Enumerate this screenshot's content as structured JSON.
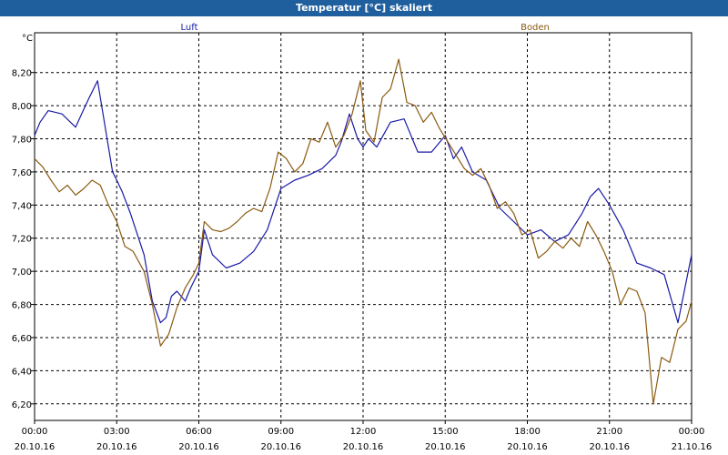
{
  "window": {
    "title": "Temperatur [°C] skaliert"
  },
  "colors": {
    "luft": "#1a1aa6",
    "boden": "#8b5a10",
    "grid": "#000000",
    "titlebar": "#1f5f9e"
  },
  "chart_data": {
    "type": "line",
    "title": "Temperatur [°C] skaliert",
    "ylabel": "°C",
    "ylim": [
      6.1,
      8.44
    ],
    "xlim": [
      0,
      24
    ],
    "grid": true,
    "legend_position": "top",
    "y_ticks": [
      {
        "value": 6.2,
        "label": "6,20"
      },
      {
        "value": 6.4,
        "label": "6,40"
      },
      {
        "value": 6.6,
        "label": "6,60"
      },
      {
        "value": 6.8,
        "label": "6,80"
      },
      {
        "value": 7.0,
        "label": "7,00"
      },
      {
        "value": 7.2,
        "label": "7,20"
      },
      {
        "value": 7.4,
        "label": "7,40"
      },
      {
        "value": 7.6,
        "label": "7,60"
      },
      {
        "value": 7.8,
        "label": "7,80"
      },
      {
        "value": 8.0,
        "label": "8,00"
      },
      {
        "value": 8.2,
        "label": "8,20"
      }
    ],
    "x_ticks": [
      {
        "value": 0,
        "time": "00:00",
        "date": "20.10.16"
      },
      {
        "value": 3,
        "time": "03:00",
        "date": "20.10.16"
      },
      {
        "value": 6,
        "time": "06:00",
        "date": "20.10.16"
      },
      {
        "value": 9,
        "time": "09:00",
        "date": "20.10.16"
      },
      {
        "value": 12,
        "time": "12:00",
        "date": "20.10.16"
      },
      {
        "value": 15,
        "time": "15:00",
        "date": "20.10.16"
      },
      {
        "value": 18,
        "time": "18:00",
        "date": "20.10.16"
      },
      {
        "value": 21,
        "time": "21:00",
        "date": "20.10.16"
      },
      {
        "value": 24,
        "time": "00:00",
        "date": "21.10.16"
      }
    ],
    "series": [
      {
        "name": "Luft",
        "color": "#1a1aa6",
        "x": [
          0,
          0.2,
          0.5,
          1,
          1.5,
          1.8,
          2,
          2.3,
          2.5,
          2.7,
          2.85,
          3,
          3.2,
          3.5,
          4,
          4.3,
          4.6,
          4.8,
          5,
          5.2,
          5.5,
          5.7,
          6,
          6.2,
          6.5,
          7,
          7.5,
          8,
          8.5,
          9,
          9.5,
          10,
          10.5,
          11,
          11.2,
          11.5,
          11.8,
          12,
          12.2,
          12.5,
          13,
          13.5,
          14,
          14.5,
          15,
          15.3,
          15.6,
          16,
          16.5,
          17,
          17.5,
          18,
          18.5,
          19,
          19.5,
          20,
          20.3,
          20.6,
          21,
          21.5,
          22,
          22.5,
          23,
          23.5,
          24
        ],
        "y": [
          7.82,
          7.9,
          7.97,
          7.95,
          7.87,
          7.98,
          8.05,
          8.15,
          7.95,
          7.75,
          7.6,
          7.55,
          7.48,
          7.35,
          7.1,
          6.82,
          6.69,
          6.72,
          6.85,
          6.88,
          6.82,
          6.9,
          7.0,
          7.25,
          7.1,
          7.02,
          7.05,
          7.12,
          7.25,
          7.5,
          7.55,
          7.58,
          7.62,
          7.7,
          7.78,
          7.95,
          7.8,
          7.75,
          7.8,
          7.75,
          7.9,
          7.92,
          7.72,
          7.72,
          7.82,
          7.68,
          7.75,
          7.6,
          7.55,
          7.38,
          7.3,
          7.22,
          7.25,
          7.18,
          7.22,
          7.35,
          7.45,
          7.5,
          7.4,
          7.25,
          7.05,
          7.02,
          6.98,
          6.69,
          7.1
        ]
      },
      {
        "name": "Boden",
        "color": "#8b5a10",
        "x": [
          0,
          0.3,
          0.6,
          0.9,
          1.2,
          1.5,
          1.8,
          2.1,
          2.4,
          2.7,
          3,
          3.3,
          3.6,
          4,
          4.3,
          4.6,
          4.9,
          5.2,
          5.5,
          5.8,
          6,
          6.2,
          6.5,
          6.8,
          7.1,
          7.4,
          7.7,
          8,
          8.3,
          8.6,
          8.9,
          9.2,
          9.5,
          9.8,
          10.1,
          10.4,
          10.7,
          11,
          11.3,
          11.6,
          11.9,
          12.1,
          12.4,
          12.7,
          13,
          13.3,
          13.6,
          13.9,
          14.2,
          14.5,
          14.8,
          15.1,
          15.4,
          15.7,
          16,
          16.3,
          16.6,
          16.9,
          17.2,
          17.5,
          17.8,
          18.1,
          18.4,
          18.7,
          19,
          19.3,
          19.6,
          19.9,
          20.2,
          20.5,
          20.8,
          21.1,
          21.4,
          21.7,
          22,
          22.3,
          22.6,
          22.9,
          23.2,
          23.5,
          23.8,
          24
        ],
        "y": [
          7.68,
          7.63,
          7.55,
          7.48,
          7.52,
          7.46,
          7.5,
          7.55,
          7.52,
          7.4,
          7.3,
          7.15,
          7.12,
          7.0,
          6.8,
          6.55,
          6.62,
          6.78,
          6.9,
          6.98,
          7.05,
          7.3,
          7.25,
          7.24,
          7.26,
          7.3,
          7.35,
          7.38,
          7.36,
          7.5,
          7.72,
          7.68,
          7.6,
          7.65,
          7.8,
          7.78,
          7.9,
          7.75,
          7.82,
          7.95,
          8.15,
          7.85,
          7.78,
          8.05,
          8.1,
          8.28,
          8.02,
          8.0,
          7.9,
          7.96,
          7.86,
          7.78,
          7.7,
          7.62,
          7.58,
          7.62,
          7.52,
          7.38,
          7.42,
          7.35,
          7.22,
          7.25,
          7.08,
          7.12,
          7.18,
          7.14,
          7.2,
          7.15,
          7.3,
          7.22,
          7.12,
          7.0,
          6.8,
          6.9,
          6.88,
          6.75,
          6.2,
          6.48,
          6.45,
          6.65,
          6.7,
          6.82
        ]
      }
    ]
  }
}
